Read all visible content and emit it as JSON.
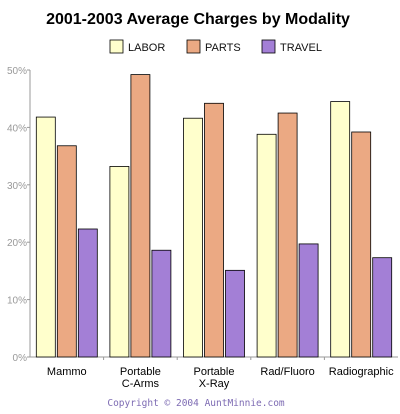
{
  "chart_data": {
    "type": "bar",
    "title": "2001-2003 Average Charges by Modality",
    "categories": [
      [
        "Mammo"
      ],
      [
        "Portable",
        "C-Arms"
      ],
      [
        "Portable",
        "X-Ray"
      ],
      [
        "Rad/Fluoro"
      ],
      [
        "Radiographic"
      ]
    ],
    "series": [
      {
        "name": "LABOR",
        "color": "#ffffcc",
        "values": [
          41.8,
          33.2,
          41.6,
          38.8,
          44.5
        ]
      },
      {
        "name": "PARTS",
        "color": "#eba983",
        "values": [
          36.8,
          49.2,
          44.2,
          42.5,
          39.2
        ]
      },
      {
        "name": "TRAVEL",
        "color": "#a37fd6",
        "values": [
          22.3,
          18.6,
          15.1,
          19.7,
          17.3
        ]
      }
    ],
    "yticks": [
      "0%",
      "10%",
      "20%",
      "30%",
      "40%",
      "50%"
    ],
    "ylim": [
      0,
      50
    ],
    "legend_position": "top",
    "grid": false
  },
  "footer": {
    "copyright": "Copyright © 2004 AuntMinnie.com"
  }
}
